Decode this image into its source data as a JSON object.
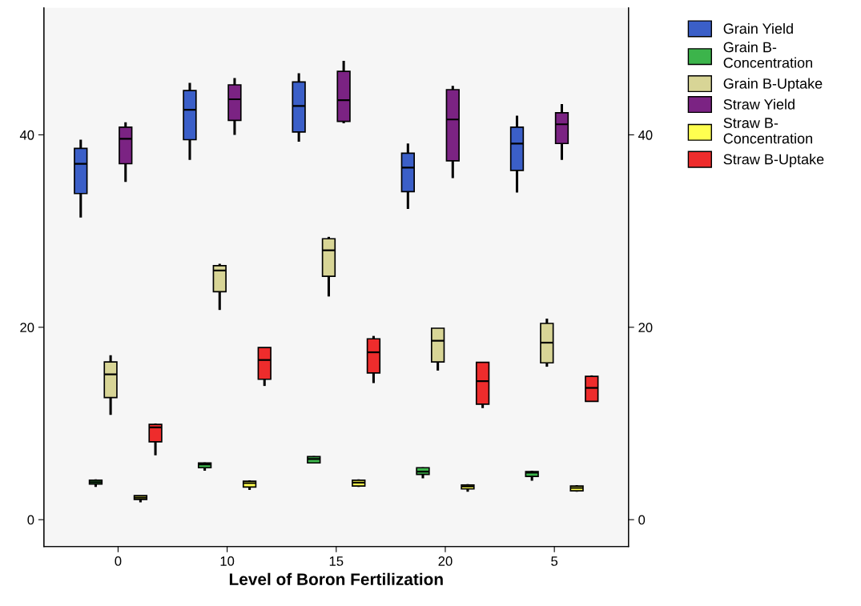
{
  "chart_data": {
    "type": "box",
    "xlabel": "Level of Boron Fertilization",
    "categories": [
      "0",
      "10",
      "15",
      "20",
      "5"
    ],
    "ylim": [
      -2.8,
      53.2
    ],
    "yticks": [
      0,
      20,
      40
    ],
    "y2lim": [
      -2.8,
      53.2
    ],
    "y2ticks": [
      0,
      20,
      40
    ],
    "grid": false,
    "legend": "top right",
    "series": [
      {
        "name": "Grain Yield",
        "color": "#3b5fc8",
        "boxes": [
          {
            "low": 31.4,
            "q1": 33.9,
            "median": 37.0,
            "q3": 38.6,
            "high": 39.5
          },
          {
            "low": 37.4,
            "q1": 39.5,
            "median": 42.6,
            "q3": 44.6,
            "high": 45.4
          },
          {
            "low": 39.3,
            "q1": 40.3,
            "median": 43.0,
            "q3": 45.5,
            "high": 46.4
          },
          {
            "low": 32.3,
            "q1": 34.1,
            "median": 36.6,
            "q3": 38.1,
            "high": 39.1
          },
          {
            "low": 34.0,
            "q1": 36.3,
            "median": 39.1,
            "q3": 40.8,
            "high": 42.0
          }
        ]
      },
      {
        "name": "Grain B-\nConcentration",
        "color": "#3cb44b",
        "boxes": [
          {
            "low": 3.4,
            "q1": 3.7,
            "median": 3.9,
            "q3": 4.1,
            "high": 4.2
          },
          {
            "low": 5.1,
            "q1": 5.4,
            "median": 5.75,
            "q3": 5.9,
            "high": 5.95
          },
          {
            "low": 5.85,
            "q1": 5.9,
            "median": 6.3,
            "q3": 6.55,
            "high": 6.6
          },
          {
            "low": 4.3,
            "q1": 4.7,
            "median": 5.0,
            "q3": 5.4,
            "high": 5.45
          },
          {
            "low": 4.05,
            "q1": 4.5,
            "median": 4.9,
            "q3": 5.0,
            "high": 5.1
          }
        ]
      },
      {
        "name": "Grain B-Uptake",
        "color": "#d8d596",
        "boxes": [
          {
            "low": 10.9,
            "q1": 12.7,
            "median": 15.1,
            "q3": 16.4,
            "high": 17.1
          },
          {
            "low": 21.8,
            "q1": 23.7,
            "median": 25.9,
            "q3": 26.4,
            "high": 26.6
          },
          {
            "low": 23.2,
            "q1": 25.3,
            "median": 28.0,
            "q3": 29.2,
            "high": 29.4
          },
          {
            "low": 15.5,
            "q1": 16.4,
            "median": 18.6,
            "q3": 19.9,
            "high": 19.9
          },
          {
            "low": 15.9,
            "q1": 16.3,
            "median": 18.4,
            "q3": 20.4,
            "high": 20.9
          }
        ]
      },
      {
        "name": "Straw Yield",
        "color": "#7b2383",
        "boxes": [
          {
            "low": 35.1,
            "q1": 37.0,
            "median": 39.6,
            "q3": 40.8,
            "high": 41.3
          },
          {
            "low": 40.0,
            "q1": 41.5,
            "median": 43.7,
            "q3": 45.2,
            "high": 45.9
          },
          {
            "low": 41.2,
            "q1": 41.4,
            "median": 43.6,
            "q3": 46.6,
            "high": 47.7
          },
          {
            "low": 35.5,
            "q1": 37.3,
            "median": 41.6,
            "q3": 44.7,
            "high": 45.1
          },
          {
            "low": 37.4,
            "q1": 39.1,
            "median": 41.1,
            "q3": 42.3,
            "high": 43.2
          }
        ]
      },
      {
        "name": "Straw B-\nConcentration",
        "color": "#ffff50",
        "boxes": [
          {
            "low": 1.8,
            "q1": 2.1,
            "median": 2.3,
            "q3": 2.5,
            "high": 2.5
          },
          {
            "low": 3.1,
            "q1": 3.4,
            "median": 3.8,
            "q3": 4.0,
            "high": 4.1
          },
          {
            "low": 3.4,
            "q1": 3.5,
            "median": 3.85,
            "q3": 4.1,
            "high": 4.2
          },
          {
            "low": 2.9,
            "q1": 3.2,
            "median": 3.45,
            "q3": 3.6,
            "high": 3.7
          },
          {
            "low": 2.9,
            "q1": 3.0,
            "median": 3.3,
            "q3": 3.5,
            "high": 3.6
          }
        ]
      },
      {
        "name": "Straw B-Uptake",
        "color": "#ee2c2c",
        "boxes": [
          {
            "low": 6.7,
            "q1": 8.1,
            "median": 9.6,
            "q3": 9.9,
            "high": 10.0
          },
          {
            "low": 13.9,
            "q1": 14.6,
            "median": 16.6,
            "q3": 17.9,
            "high": 17.9
          },
          {
            "low": 14.2,
            "q1": 15.25,
            "median": 17.4,
            "q3": 18.8,
            "high": 19.1
          },
          {
            "low": 11.6,
            "q1": 12.0,
            "median": 14.4,
            "q3": 16.35,
            "high": 16.4
          },
          {
            "low": 12.25,
            "q1": 12.3,
            "median": 13.7,
            "q3": 14.9,
            "high": 15.0
          }
        ]
      }
    ]
  }
}
